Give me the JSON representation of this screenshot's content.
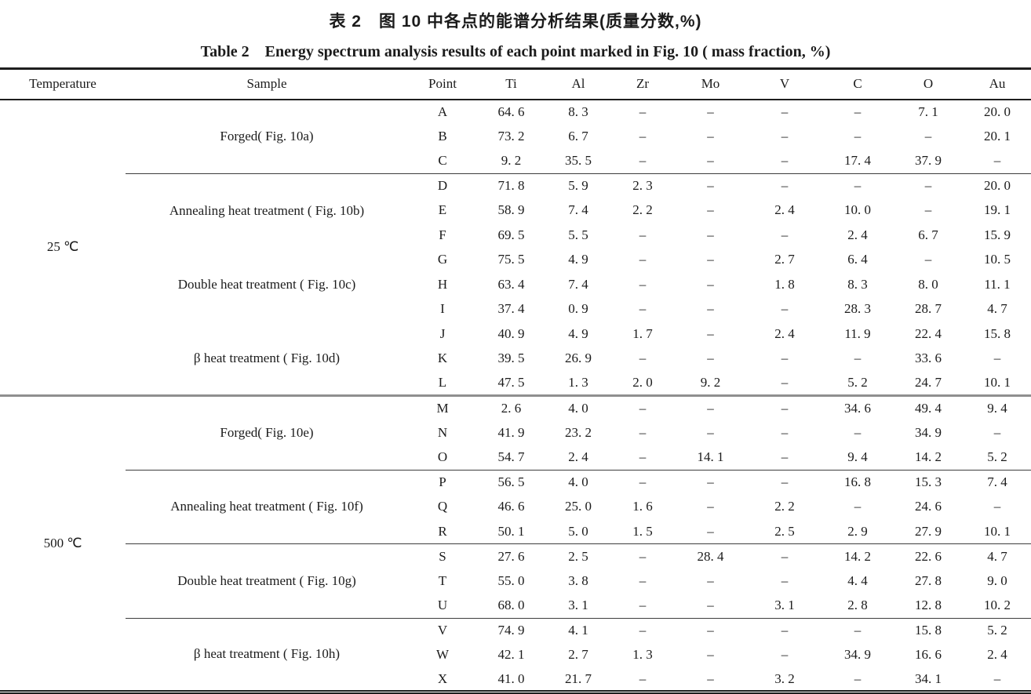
{
  "page": {
    "title_zh": "表 2　图 10 中各点的能谱分析结果(质量分数,%)",
    "title_en": "Table 2　Energy spectrum analysis results of each point marked in Fig. 10 ( mass fraction, %)"
  },
  "columns": [
    "Temperature",
    "Sample",
    "Point",
    "Ti",
    "Al",
    "Zr",
    "Mo",
    "V",
    "C",
    "O",
    "Au"
  ],
  "sections": [
    {
      "temperature": "25 ℃",
      "end_line": "section",
      "groups": [
        {
          "sample": "Forged( Fig. 10a)",
          "divider_after": "group",
          "rows": [
            {
              "point": "A",
              "values": [
                "64. 6",
                "8. 3",
                "–",
                "–",
                "–",
                "–",
                "7. 1",
                "20. 0"
              ]
            },
            {
              "point": "B",
              "values": [
                "73. 2",
                "6. 7",
                "–",
                "–",
                "–",
                "–",
                "–",
                "20. 1"
              ]
            },
            {
              "point": "C",
              "values": [
                "9. 2",
                "35. 5",
                "–",
                "–",
                "–",
                "17. 4",
                "37. 9",
                "–"
              ]
            }
          ]
        },
        {
          "sample": "Annealing heat treatment ( Fig. 10b)",
          "divider_after": "none",
          "rows": [
            {
              "point": "D",
              "values": [
                "71. 8",
                "5. 9",
                "2. 3",
                "–",
                "–",
                "–",
                "–",
                "20. 0"
              ]
            },
            {
              "point": "E",
              "values": [
                "58. 9",
                "7. 4",
                "2. 2",
                "–",
                "2. 4",
                "10. 0",
                "–",
                "19. 1"
              ]
            },
            {
              "point": "F",
              "values": [
                "69. 5",
                "5. 5",
                "–",
                "–",
                "–",
                "2. 4",
                "6. 7",
                "15. 9"
              ]
            }
          ]
        },
        {
          "sample": "Double heat treatment ( Fig. 10c)",
          "divider_after": "none",
          "rows": [
            {
              "point": "G",
              "values": [
                "75. 5",
                "4. 9",
                "–",
                "–",
                "2. 7",
                "6. 4",
                "–",
                "10. 5"
              ]
            },
            {
              "point": "H",
              "values": [
                "63. 4",
                "7. 4",
                "–",
                "–",
                "1. 8",
                "8. 3",
                "8. 0",
                "11. 1"
              ]
            },
            {
              "point": "I",
              "values": [
                "37. 4",
                "0. 9",
                "–",
                "–",
                "–",
                "28. 3",
                "28. 7",
                "4. 7"
              ]
            }
          ]
        },
        {
          "sample": "β heat treatment ( Fig. 10d)",
          "divider_after": "section",
          "rows": [
            {
              "point": "J",
              "values": [
                "40. 9",
                "4. 9",
                "1. 7",
                "–",
                "2. 4",
                "11. 9",
                "22. 4",
                "15. 8"
              ]
            },
            {
              "point": "K",
              "values": [
                "39. 5",
                "26. 9",
                "–",
                "–",
                "–",
                "–",
                "33. 6",
                "–"
              ]
            },
            {
              "point": "L",
              "values": [
                "47. 5",
                "1. 3",
                "2. 0",
                "9. 2",
                "–",
                "5. 2",
                "24. 7",
                "10. 1"
              ]
            }
          ]
        }
      ]
    },
    {
      "temperature": "500 ℃",
      "end_line": "none",
      "groups": [
        {
          "sample": "Forged( Fig. 10e)",
          "divider_after": "group",
          "rows": [
            {
              "point": "M",
              "values": [
                "2. 6",
                "4. 0",
                "–",
                "–",
                "–",
                "34. 6",
                "49. 4",
                "9. 4"
              ]
            },
            {
              "point": "N",
              "values": [
                "41. 9",
                "23. 2",
                "–",
                "–",
                "–",
                "–",
                "34. 9",
                "–"
              ]
            },
            {
              "point": "O",
              "values": [
                "54. 7",
                "2. 4",
                "–",
                "14. 1",
                "–",
                "9. 4",
                "14. 2",
                "5. 2"
              ]
            }
          ]
        },
        {
          "sample": "Annealing heat treatment ( Fig. 10f)",
          "divider_after": "group",
          "rows": [
            {
              "point": "P",
              "values": [
                "56. 5",
                "4. 0",
                "–",
                "–",
                "–",
                "16. 8",
                "15. 3",
                "7. 4"
              ]
            },
            {
              "point": "Q",
              "values": [
                "46. 6",
                "25. 0",
                "1. 6",
                "–",
                "2. 2",
                "–",
                "24. 6",
                "–"
              ]
            },
            {
              "point": "R",
              "values": [
                "50. 1",
                "5. 0",
                "1. 5",
                "–",
                "2. 5",
                "2. 9",
                "27. 9",
                "10. 1"
              ]
            }
          ]
        },
        {
          "sample": "Double heat treatment ( Fig. 10g)",
          "divider_after": "group",
          "rows": [
            {
              "point": "S",
              "values": [
                "27. 6",
                "2. 5",
                "–",
                "28. 4",
                "–",
                "14. 2",
                "22. 6",
                "4. 7"
              ]
            },
            {
              "point": "T",
              "values": [
                "55. 0",
                "3. 8",
                "–",
                "–",
                "–",
                "4. 4",
                "27. 8",
                "9. 0"
              ]
            },
            {
              "point": "U",
              "values": [
                "68. 0",
                "3. 1",
                "–",
                "–",
                "3. 1",
                "2. 8",
                "12. 8",
                "10. 2"
              ]
            }
          ]
        },
        {
          "sample": "β heat treatment ( Fig. 10h)",
          "divider_after": "none",
          "rows": [
            {
              "point": "V",
              "values": [
                "74. 9",
                "4. 1",
                "–",
                "–",
                "–",
                "–",
                "15. 8",
                "5. 2"
              ]
            },
            {
              "point": "W",
              "values": [
                "42. 1",
                "2. 7",
                "1. 3",
                "–",
                "–",
                "34. 9",
                "16. 6",
                "2. 4"
              ]
            },
            {
              "point": "X",
              "values": [
                "41. 0",
                "21. 7",
                "–",
                "–",
                "3. 2",
                "–",
                "34. 1",
                "–"
              ]
            }
          ]
        }
      ]
    }
  ]
}
